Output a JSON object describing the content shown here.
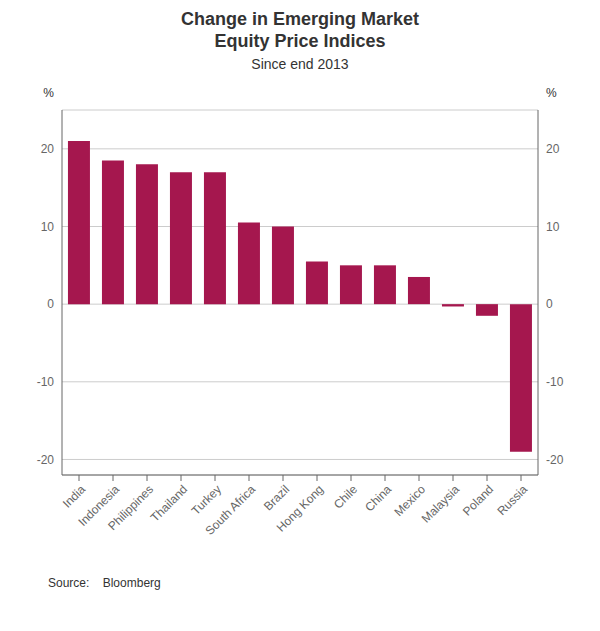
{
  "chart_data": {
    "type": "bar",
    "title": "Change in Emerging Market\nEquity Price Indices",
    "subtitle": "Since end 2013",
    "categories": [
      "India",
      "Indonesia",
      "Philippines",
      "Thailand",
      "Turkey",
      "South Africa",
      "Brazil",
      "Hong Kong",
      "Chile",
      "China",
      "Mexico",
      "Malaysia",
      "Poland",
      "Russia"
    ],
    "values": [
      21.0,
      18.5,
      18.0,
      17.0,
      17.0,
      10.5,
      10.0,
      5.5,
      5.0,
      5.0,
      3.5,
      -0.3,
      -1.5,
      -19.0
    ],
    "color": "#a5174e",
    "ylim": [
      -22,
      25
    ],
    "yticks": [
      -20,
      -10,
      0,
      10,
      20
    ],
    "y2lim": [
      -22,
      25
    ],
    "y2ticks": [
      -20,
      -10,
      0,
      10,
      20
    ],
    "grid": true,
    "annotations": [
      "%",
      "%",
      "Source:    Bloomberg"
    ]
  }
}
